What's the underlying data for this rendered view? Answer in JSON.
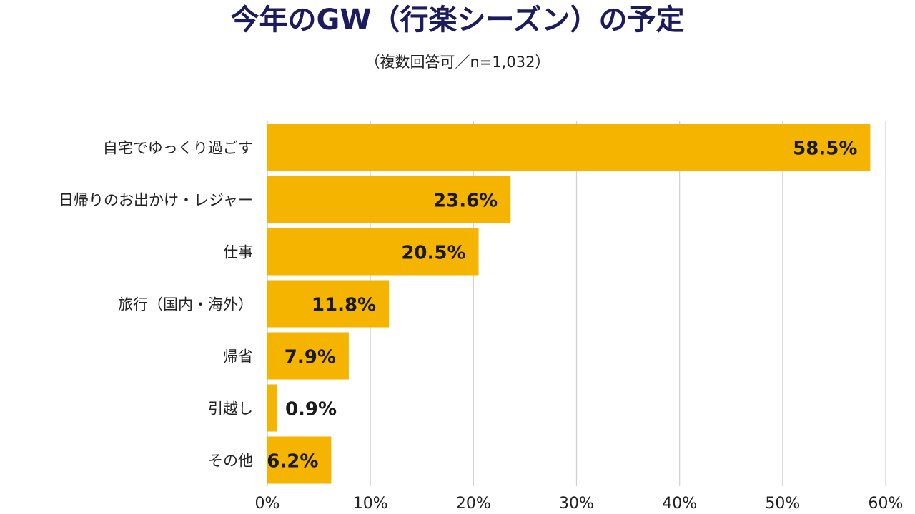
{
  "chart_data": {
    "type": "bar",
    "orientation": "horizontal",
    "title": "今年のGW（行楽シーズン）の予定",
    "subtitle": "（複数回答可／n=1,032）",
    "categories": [
      "自宅でゆっくり過ごす",
      "日帰りのお出かけ・レジャー",
      "仕事",
      "旅行（国内・海外）",
      "帰省",
      "引越し",
      "その他"
    ],
    "values": [
      58.5,
      23.6,
      20.5,
      11.8,
      7.9,
      0.9,
      6.2
    ],
    "value_labels": [
      "58.5%",
      "23.6%",
      "20.5%",
      "11.8%",
      "7.9%",
      "0.9%",
      "6.2%"
    ],
    "xlim": [
      0,
      60
    ],
    "xticks": [
      0,
      10,
      20,
      30,
      40,
      50,
      60
    ],
    "xtick_labels": [
      "0%",
      "10%",
      "20%",
      "30%",
      "40%",
      "50%",
      "60%"
    ],
    "grid": "vertical",
    "bar_color": "#f5b400",
    "title_color": "#1b1b5e"
  }
}
